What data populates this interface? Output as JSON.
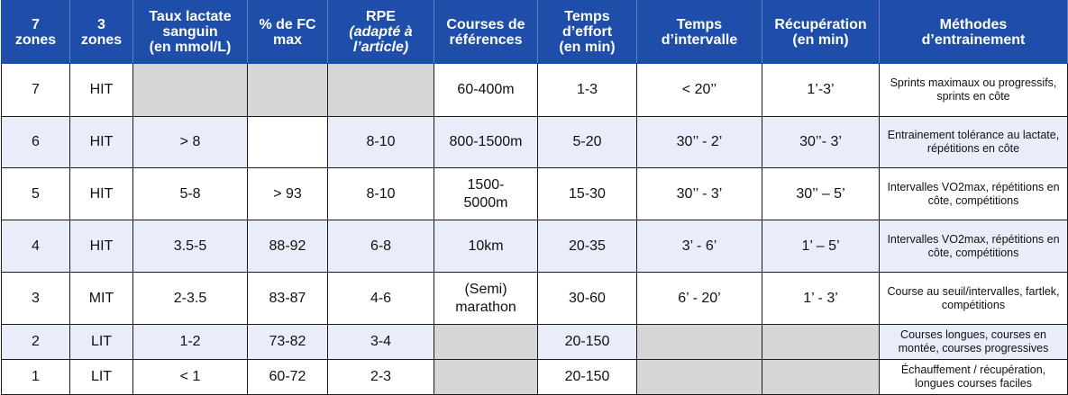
{
  "table": {
    "headers": [
      {
        "lines": [
          "7",
          "zones"
        ]
      },
      {
        "lines": [
          "3",
          "zones"
        ]
      },
      {
        "lines": [
          "Taux lactate",
          "sanguin",
          "(en mmol/L)"
        ]
      },
      {
        "lines": [
          "% de FC",
          "max"
        ]
      },
      {
        "lines": [
          "RPE"
        ],
        "sub": "(adapté à l’article)"
      },
      {
        "lines": [
          "Courses de",
          "références"
        ]
      },
      {
        "lines": [
          "Temps",
          "d’effort",
          "(en min)"
        ]
      },
      {
        "lines": [
          "Temps",
          "d’intervalle"
        ]
      },
      {
        "lines": [
          "Récupération",
          "(en min)"
        ]
      },
      {
        "lines": [
          "Méthodes",
          "d’entrainement"
        ]
      }
    ],
    "rows": [
      {
        "zone7": "7",
        "zone3": "HIT",
        "lactate": "",
        "fc": "",
        "rpe": "",
        "courses": "60-400m",
        "effort": "1-3",
        "intervalle": "< 20’’",
        "recup": "1’-3’",
        "methodes": "Sprints maximaux ou progressifs, sprints en côte"
      },
      {
        "zone7": "6",
        "zone3": "HIT",
        "lactate": "> 8",
        "fc": "",
        "rpe": "8-10",
        "courses": "800-1500m",
        "effort": "5-20",
        "intervalle": "30’’ - 2’",
        "recup": "30’’- 3’",
        "methodes": "Entrainement tolérance au lactate, répétitions en côte"
      },
      {
        "zone7": "5",
        "zone3": "HIT",
        "lactate": "5-8",
        "fc": "> 93",
        "rpe": "8-10",
        "courses": "1500-5000m",
        "effort": "15-30",
        "intervalle": "30’’ - 3’",
        "recup": "30’’ – 5’",
        "methodes": "Intervalles VO2max, répétitions en côte, compétitions"
      },
      {
        "zone7": "4",
        "zone3": "HIT",
        "lactate": "3.5-5",
        "fc": "88-92",
        "rpe": "6-8",
        "courses": "10km",
        "effort": "20-35",
        "intervalle": "3’ - 6’",
        "recup": "1’ – 5’",
        "methodes": "Intervalles VO2max, répétitions en côte, compétitions"
      },
      {
        "zone7": "3",
        "zone3": "MIT",
        "lactate": "2-3.5",
        "fc": "83-87",
        "rpe": "4-6",
        "courses": "(Semi) marathon",
        "effort": "30-60",
        "intervalle": "6’ - 20’",
        "recup": "1’ - 3’",
        "methodes": "Course au seuil/intervalles, fartlek, compétitions"
      },
      {
        "zone7": "2",
        "zone3": "LIT",
        "lactate": "1-2",
        "fc": "73-82",
        "rpe": "3-4",
        "courses": "",
        "effort": "20-150",
        "intervalle": "",
        "recup": "",
        "methodes": "Courses longues, courses en montée, courses progressives"
      },
      {
        "zone7": "1",
        "zone3": "LIT",
        "lactate": "< 1",
        "fc": "60-72",
        "rpe": "2-3",
        "courses": "",
        "effort": "20-150",
        "intervalle": "",
        "recup": "",
        "methodes": "Échauffement / récupération, longues courses faciles"
      }
    ]
  },
  "colors": {
    "header_bg": "#1f4eaa",
    "header_text": "#ffffff",
    "alt_row_bg": "#e8edf9",
    "empty_cell_gray": "#d6d6d6"
  }
}
